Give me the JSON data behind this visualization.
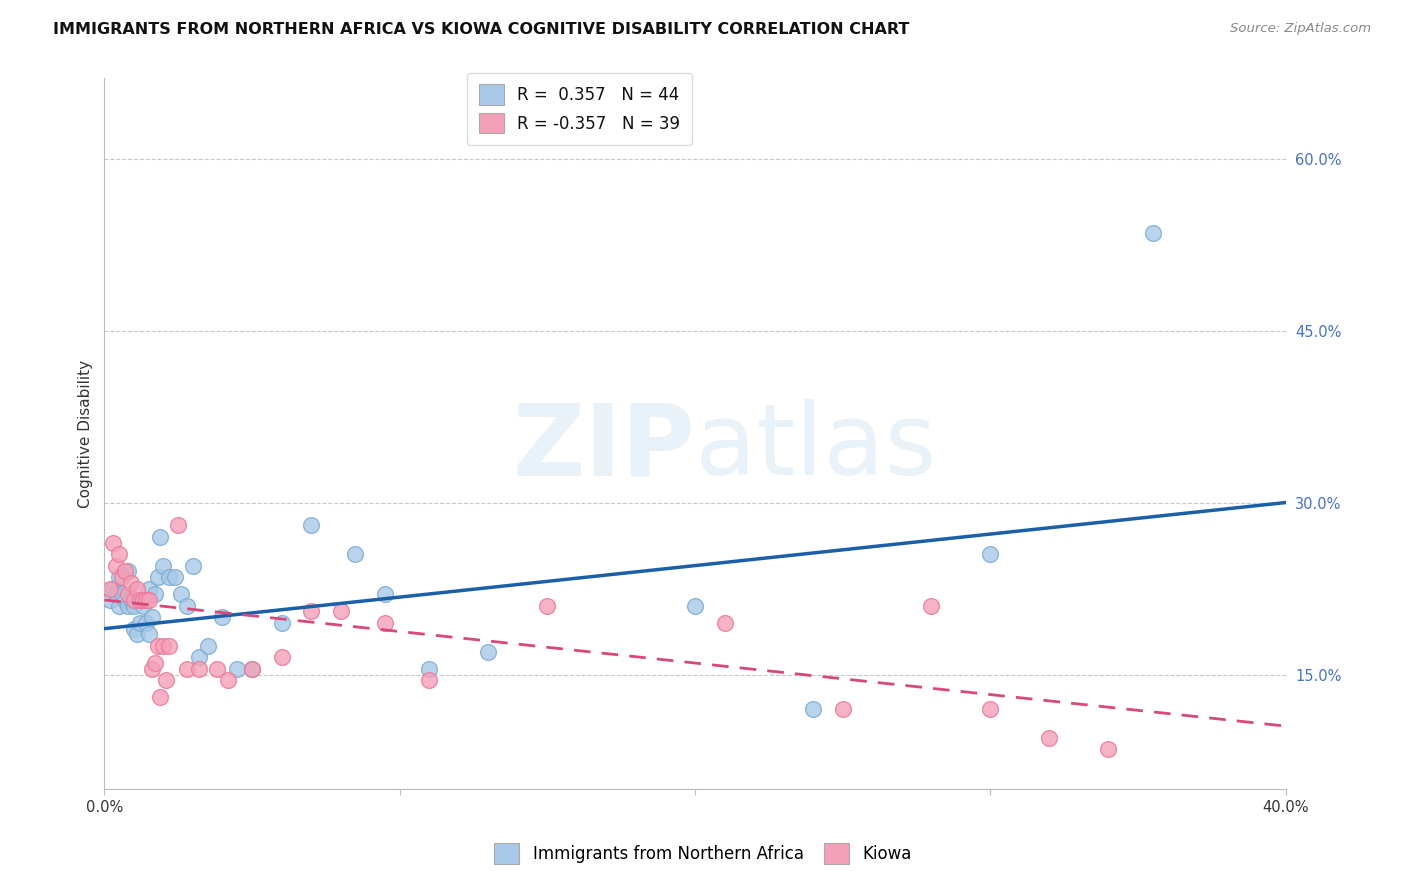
{
  "title": "IMMIGRANTS FROM NORTHERN AFRICA VS KIOWA COGNITIVE DISABILITY CORRELATION CHART",
  "source": "Source: ZipAtlas.com",
  "ylabel": "Cognitive Disability",
  "xlim": [
    0.0,
    0.4
  ],
  "ylim": [
    0.05,
    0.67
  ],
  "yticks": [
    0.15,
    0.3,
    0.45,
    0.6
  ],
  "ytick_labels": [
    "15.0%",
    "30.0%",
    "45.0%",
    "60.0%"
  ],
  "blue_R": 0.357,
  "blue_N": 44,
  "pink_R": -0.357,
  "pink_N": 39,
  "blue_color": "#a8c8e8",
  "pink_color": "#f4a0b8",
  "blue_scatter_edge": "#7aaad0",
  "pink_scatter_edge": "#e87898",
  "blue_line_color": "#1a5fa8",
  "pink_line_color": "#d84878",
  "legend_blue_label": "Immigrants from Northern Africa",
  "legend_pink_label": "Kiowa",
  "watermark_text": "ZIPatlas",
  "blue_scatter_x": [
    0.002,
    0.003,
    0.004,
    0.005,
    0.005,
    0.006,
    0.007,
    0.008,
    0.008,
    0.009,
    0.01,
    0.01,
    0.011,
    0.012,
    0.012,
    0.013,
    0.014,
    0.015,
    0.015,
    0.016,
    0.017,
    0.018,
    0.019,
    0.02,
    0.022,
    0.024,
    0.026,
    0.028,
    0.03,
    0.032,
    0.035,
    0.04,
    0.045,
    0.05,
    0.06,
    0.07,
    0.085,
    0.095,
    0.11,
    0.13,
    0.2,
    0.24,
    0.3,
    0.355
  ],
  "blue_scatter_y": [
    0.215,
    0.225,
    0.22,
    0.235,
    0.21,
    0.22,
    0.215,
    0.24,
    0.21,
    0.215,
    0.19,
    0.21,
    0.185,
    0.195,
    0.215,
    0.21,
    0.195,
    0.225,
    0.185,
    0.2,
    0.22,
    0.235,
    0.27,
    0.245,
    0.235,
    0.235,
    0.22,
    0.21,
    0.245,
    0.165,
    0.175,
    0.2,
    0.155,
    0.155,
    0.195,
    0.28,
    0.255,
    0.22,
    0.155,
    0.17,
    0.21,
    0.12,
    0.255,
    0.535
  ],
  "pink_scatter_x": [
    0.002,
    0.003,
    0.004,
    0.005,
    0.006,
    0.007,
    0.008,
    0.009,
    0.01,
    0.011,
    0.012,
    0.013,
    0.014,
    0.015,
    0.016,
    0.017,
    0.018,
    0.019,
    0.02,
    0.021,
    0.022,
    0.025,
    0.028,
    0.032,
    0.038,
    0.042,
    0.05,
    0.06,
    0.07,
    0.08,
    0.095,
    0.11,
    0.15,
    0.21,
    0.25,
    0.28,
    0.3,
    0.32,
    0.34
  ],
  "pink_scatter_y": [
    0.225,
    0.265,
    0.245,
    0.255,
    0.235,
    0.24,
    0.22,
    0.23,
    0.215,
    0.225,
    0.215,
    0.215,
    0.215,
    0.215,
    0.155,
    0.16,
    0.175,
    0.13,
    0.175,
    0.145,
    0.175,
    0.28,
    0.155,
    0.155,
    0.155,
    0.145,
    0.155,
    0.165,
    0.205,
    0.205,
    0.195,
    0.145,
    0.21,
    0.195,
    0.12,
    0.21,
    0.12,
    0.095,
    0.085
  ],
  "blue_line_x": [
    0.0,
    0.4
  ],
  "blue_line_y": [
    0.19,
    0.3
  ],
  "pink_line_x": [
    0.0,
    0.4
  ],
  "pink_line_y": [
    0.215,
    0.105
  ],
  "background_color": "#ffffff",
  "grid_color": "#c8c8c8",
  "title_fontsize": 11.5,
  "axis_label_fontsize": 11,
  "tick_fontsize": 10.5,
  "source_fontsize": 9.5,
  "legend_fontsize": 12
}
